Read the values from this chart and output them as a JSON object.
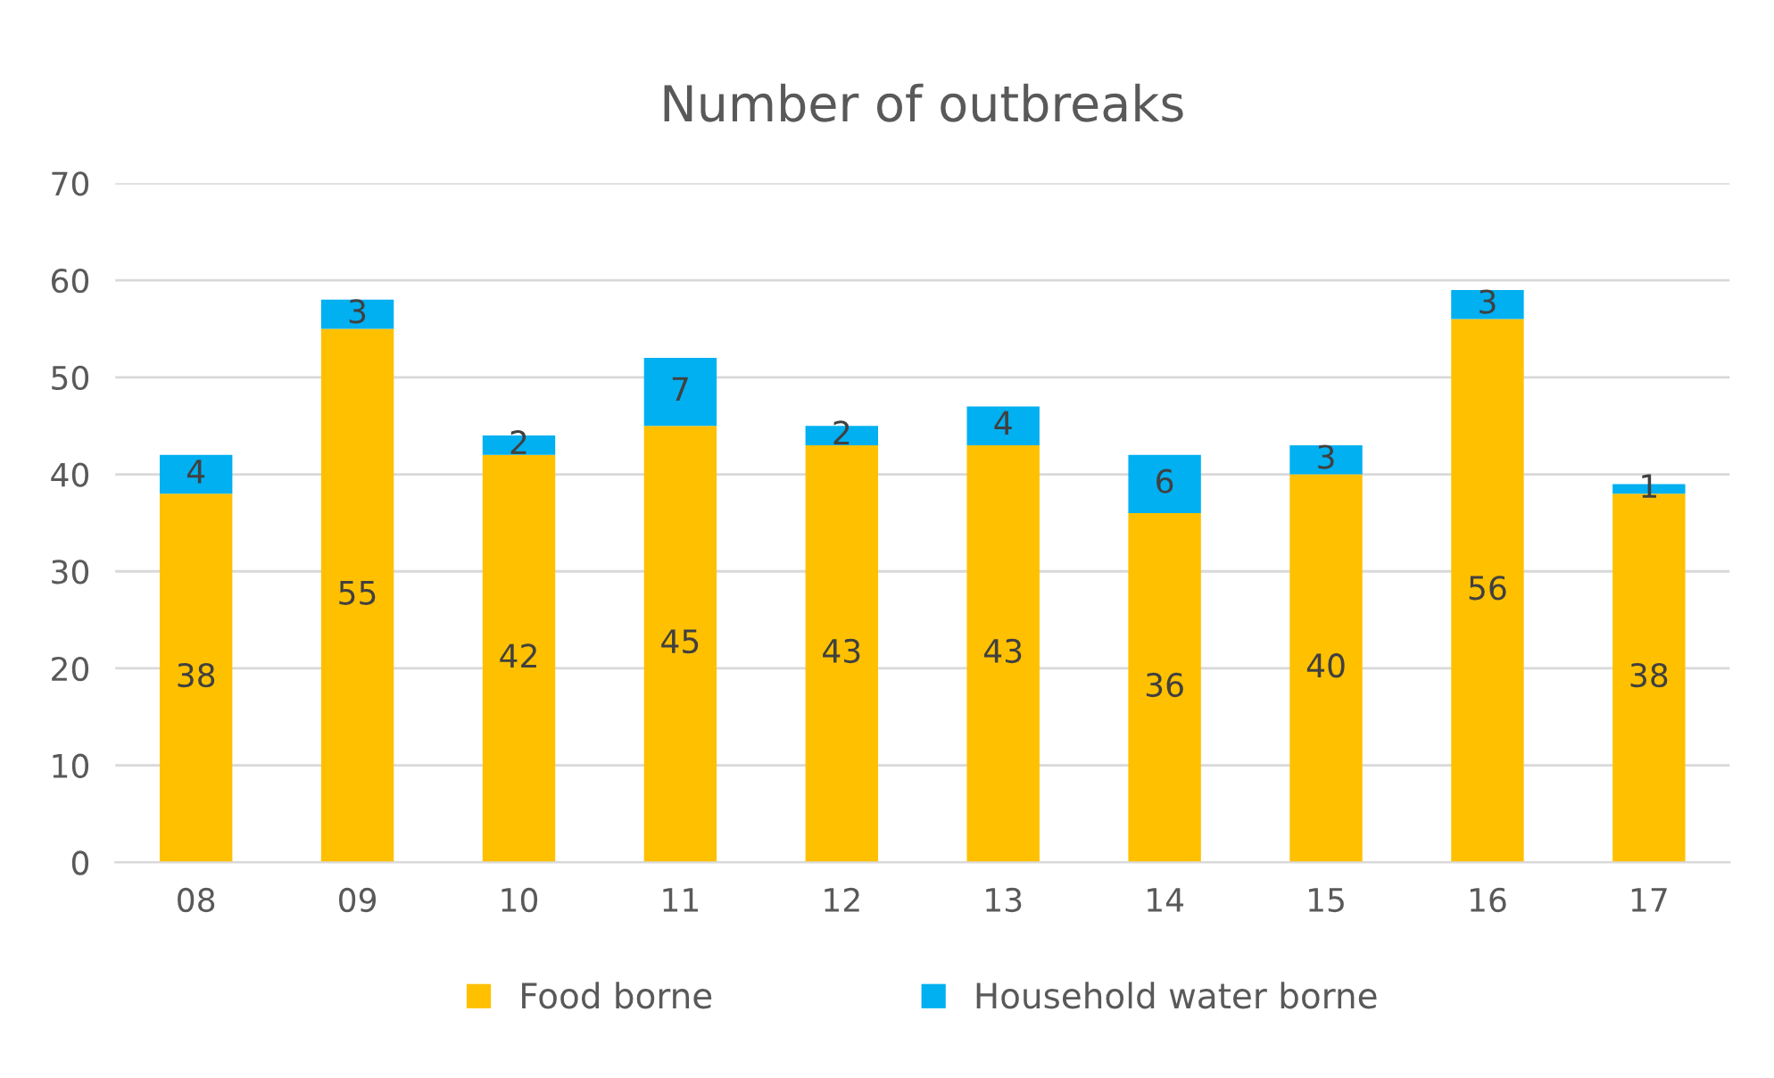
{
  "chart_data": {
    "type": "bar",
    "title": "Number of outbreaks",
    "stacked": true,
    "categories": [
      "08",
      "09",
      "10",
      "11",
      "12",
      "13",
      "14",
      "15",
      "16",
      "17"
    ],
    "series": [
      {
        "name": "Food borne",
        "color": "#ffc000",
        "values": [
          38,
          55,
          42,
          45,
          43,
          43,
          36,
          40,
          56,
          38
        ]
      },
      {
        "name": "Household water borne",
        "color": "#00b0f0",
        "values": [
          4,
          3,
          2,
          7,
          2,
          4,
          6,
          3,
          3,
          1
        ]
      }
    ],
    "ylim": [
      0,
      70
    ],
    "yticks": [
      0,
      10,
      20,
      30,
      40,
      50,
      60,
      70
    ],
    "grid": "y",
    "legend": "bottom",
    "data_labels": true
  }
}
